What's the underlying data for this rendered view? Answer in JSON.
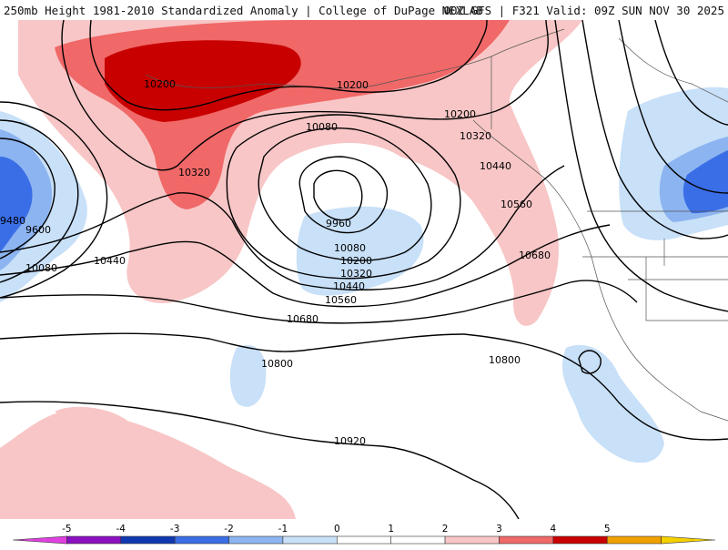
{
  "header": {
    "left_title": "250mb Height 1981-2010 Standardized Anomaly | College of DuPage NEXLAB",
    "right_title": "00Z GFS | F321 Valid: 09Z SUN NOV 30 2025"
  },
  "contour_labels": [
    {
      "id": "c10200a",
      "text": "10200"
    },
    {
      "id": "c10200b",
      "text": "10200"
    },
    {
      "id": "c10200c",
      "text": "10200"
    },
    {
      "id": "c10080a",
      "text": "10080"
    },
    {
      "id": "c10320a",
      "text": "10320"
    },
    {
      "id": "c10320b",
      "text": "10320"
    },
    {
      "id": "c10440a",
      "text": "10440"
    },
    {
      "id": "c10560a",
      "text": "10560"
    },
    {
      "id": "c10680a",
      "text": "10680"
    },
    {
      "id": "c9960",
      "text": "9960"
    },
    {
      "id": "c10080b",
      "text": "10080"
    },
    {
      "id": "c10200d",
      "text": "10200"
    },
    {
      "id": "c10320c",
      "text": "10320"
    },
    {
      "id": "c10440b",
      "text": "10440"
    },
    {
      "id": "c10560b",
      "text": "10560"
    },
    {
      "id": "c10680b",
      "text": "10680"
    },
    {
      "id": "c9480",
      "text": "9480"
    },
    {
      "id": "c9600",
      "text": "9600"
    },
    {
      "id": "c10080c",
      "text": "10080"
    },
    {
      "id": "c10440c",
      "text": "10440"
    },
    {
      "id": "c10800a",
      "text": "10800"
    },
    {
      "id": "c10800b",
      "text": "10800"
    },
    {
      "id": "c10920",
      "text": "10920"
    }
  ],
  "legend": {
    "ticks": [
      "-5",
      "-4",
      "-3",
      "-2",
      "-1",
      "0",
      "1",
      "2",
      "3",
      "4",
      "5"
    ],
    "colors": [
      "#e040e0",
      "#8a10c0",
      "#1038b0",
      "#3a6ee6",
      "#8cb4f0",
      "#c8e0f8",
      "#ffffff",
      "#ffffff",
      "#f8c6c6",
      "#f06868",
      "#c80000",
      "#f0a000",
      "#f5d000"
    ]
  },
  "colors": {
    "anom_1": "#f8c6c6",
    "anom_2": "#f06868",
    "anom_3": "#c80000",
    "anom_neg1": "#c8e0f8",
    "anom_neg2": "#8cb4f0",
    "anom_neg3": "#3a6ee6"
  }
}
